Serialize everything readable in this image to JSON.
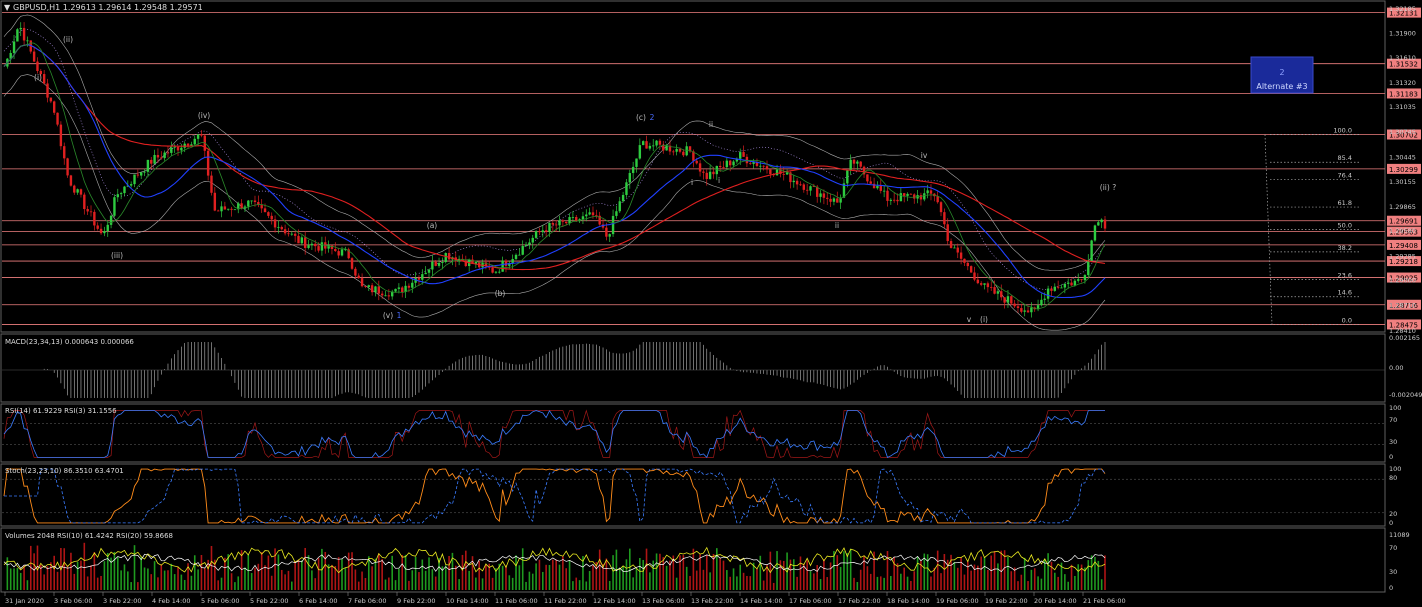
{
  "main": {
    "header": "GBPUSD,H1  1.29613 1.29614 1.29548 1.29571",
    "alt_box": {
      "line1": "2",
      "line2": "Alternate #3"
    },
    "price_ticks": [
      "1.32185",
      "1.31900",
      "1.31610",
      "1.31320",
      "1.31035",
      "1.30745",
      "1.30445",
      "1.30155",
      "1.29865",
      "1.29580",
      "1.29285",
      "1.29000",
      "1.28710",
      "1.28410"
    ],
    "h_levels": [
      {
        "price": "1.32131"
      },
      {
        "price": "1.31532"
      },
      {
        "price": "1.31183"
      },
      {
        "price": "1.30702"
      },
      {
        "price": "1.30299"
      },
      {
        "price": "1.29691"
      },
      {
        "price": "1.29563"
      },
      {
        "price": "1.29408"
      },
      {
        "price": "1.29218"
      },
      {
        "price": "1.29025"
      },
      {
        "price": "1.28706"
      },
      {
        "price": "1.28475"
      }
    ],
    "fib_levels": [
      "100.0",
      "85.4",
      "76.4",
      "61.8",
      "50.0",
      "38.2",
      "23.6",
      "14.6",
      "0.0"
    ],
    "wave_labels": [
      {
        "text": "(i)",
        "color": "#bbbbbb"
      },
      {
        "text": "(ii)",
        "color": "#bbbbbb"
      },
      {
        "text": "(iii)",
        "color": "#bbbbbb"
      },
      {
        "text": "(iv)",
        "color": "#bbbbbb"
      },
      {
        "text": "(v)",
        "color": "#bbbbbb"
      },
      {
        "text": "1",
        "color": "#4a6cff"
      },
      {
        "text": "(a)",
        "color": "#bbbbbb"
      },
      {
        "text": "(b)",
        "color": "#bbbbbb"
      },
      {
        "text": "(c)",
        "color": "#bbbbbb"
      },
      {
        "text": "2",
        "color": "#4a6cff"
      },
      {
        "text": "i",
        "color": "#bbbbbb"
      },
      {
        "text": "ii",
        "color": "#bbbbbb"
      },
      {
        "text": "i",
        "color": "#bbbbbb"
      },
      {
        "text": "ii",
        "color": "#bbbbbb"
      },
      {
        "text": "iv",
        "color": "#bbbbbb"
      },
      {
        "text": "v",
        "color": "#bbbbbb"
      },
      {
        "text": "(i)",
        "color": "#bbbbbb"
      },
      {
        "text": "(ii) ?",
        "color": "#bbbbbb"
      }
    ]
  },
  "macd": {
    "label": "MACD(23,34,13) 0.000643 0.000066",
    "ticks": [
      "0.002165",
      "0.00",
      "-0.002049"
    ]
  },
  "rsi": {
    "label": "RSI(14) 61.9229  RSI(3) 31.1556",
    "ticks": [
      "100",
      "70",
      "30",
      "0"
    ]
  },
  "stoch": {
    "label": "Stoch(23,23,10) 86.3510 63.4701",
    "ticks": [
      "100",
      "80",
      "20",
      "0"
    ]
  },
  "volume": {
    "label": "Volumes 2048  RSI(10) 61.4242  RSI(20) 59.8668",
    "ticks": [
      "11089",
      "70",
      "30",
      "0"
    ]
  },
  "time_axis": [
    "31 Jan 2020",
    "3 Feb 06:00",
    "3 Feb 22:00",
    "4 Feb 14:00",
    "5 Feb 06:00",
    "5 Feb 22:00",
    "6 Feb 14:00",
    "7 Feb 06:00",
    "9 Feb 22:00",
    "10 Feb 14:00",
    "11 Feb 06:00",
    "11 Feb 22:00",
    "12 Feb 14:00",
    "13 Feb 06:00",
    "13 Feb 22:00",
    "14 Feb 14:00",
    "17 Feb 06:00",
    "17 Feb 22:00",
    "18 Feb 14:00",
    "19 Feb 06:00",
    "19 Feb 22:00",
    "20 Feb 14:00",
    "21 Feb 06:00"
  ],
  "colors": {
    "bull": "#2ecc40",
    "bear": "#e02020",
    "level_fill": "#f08080",
    "ma_red": "#e02020",
    "ma_blue": "#2040ff",
    "alt_box": "#1a2a9a"
  },
  "chart_data": {
    "type": "candlestick",
    "symbol": "GBPUSD",
    "timeframe": "H1",
    "ohlc_last": {
      "open": 1.29613,
      "high": 1.29614,
      "low": 1.29548,
      "close": 1.29571
    },
    "close_path": [
      {
        "t": "31 Jan 2020",
        "v": 1.315
      },
      {
        "t": "31 Jan 2020",
        "v": 1.32
      },
      {
        "t": "3 Feb 06:00",
        "v": 1.31
      },
      {
        "t": "3 Feb 06:00",
        "v": 1.302
      },
      {
        "t": "3 Feb 22:00",
        "v": 1.295
      },
      {
        "t": "3 Feb 22:00",
        "v": 1.3
      },
      {
        "t": "4 Feb 14:00",
        "v": 1.304
      },
      {
        "t": "5 Feb 06:00",
        "v": 1.307
      },
      {
        "t": "5 Feb 06:00",
        "v": 1.298
      },
      {
        "t": "5 Feb 22:00",
        "v": 1.299
      },
      {
        "t": "6 Feb 14:00",
        "v": 1.2945
      },
      {
        "t": "7 Feb 06:00",
        "v": 1.293
      },
      {
        "t": "7 Feb 06:00",
        "v": 1.289
      },
      {
        "t": "9 Feb 22:00",
        "v": 1.2885
      },
      {
        "t": "10 Feb 14:00",
        "v": 1.293
      },
      {
        "t": "11 Feb 06:00",
        "v": 1.291
      },
      {
        "t": "11 Feb 22:00",
        "v": 1.296
      },
      {
        "t": "12 Feb 14:00",
        "v": 1.2975
      },
      {
        "t": "12 Feb 14:00",
        "v": 1.295
      },
      {
        "t": "13 Feb 06:00",
        "v": 1.306
      },
      {
        "t": "13 Feb 22:00",
        "v": 1.305
      },
      {
        "t": "13 Feb 22:00",
        "v": 1.302
      },
      {
        "t": "14 Feb 14:00",
        "v": 1.3045
      },
      {
        "t": "17 Feb 06:00",
        "v": 1.302
      },
      {
        "t": "17 Feb 22:00",
        "v": 1.299
      },
      {
        "t": "17 Feb 22:00",
        "v": 1.304
      },
      {
        "t": "18 Feb 14:00",
        "v": 1.2995
      },
      {
        "t": "19 Feb 06:00",
        "v": 1.3
      },
      {
        "t": "19 Feb 06:00",
        "v": 1.294
      },
      {
        "t": "19 Feb 22:00",
        "v": 1.289
      },
      {
        "t": "20 Feb 14:00",
        "v": 1.286
      },
      {
        "t": "20 Feb 14:00",
        "v": 1.289
      },
      {
        "t": "21 Feb 06:00",
        "v": 1.29
      },
      {
        "t": "21 Feb 06:00",
        "v": 1.2975
      },
      {
        "t": "21 Feb 06:00",
        "v": 1.2957
      }
    ],
    "horizontal_levels": [
      1.32131,
      1.31532,
      1.31183,
      1.30702,
      1.30299,
      1.29691,
      1.29563,
      1.29408,
      1.29218,
      1.29025,
      1.28706,
      1.28475
    ],
    "fibonacci": {
      "from": "100.0",
      "to": "0.0",
      "levels": [
        100.0,
        85.4,
        76.4,
        61.8,
        50.0,
        38.2,
        23.6,
        14.6,
        0.0
      ]
    },
    "indicators": {
      "MACD": {
        "params": "23,34,13",
        "main": 0.000643,
        "signal": 6.6e-05
      },
      "RSI14": 61.9229,
      "RSI3": 31.1556,
      "Stoch": {
        "params": "23,23,10",
        "main": 86.351,
        "signal": 63.4701
      },
      "Volumes": 2048,
      "VolRSI10": 61.4242,
      "VolRSI20": 59.8668
    }
  }
}
